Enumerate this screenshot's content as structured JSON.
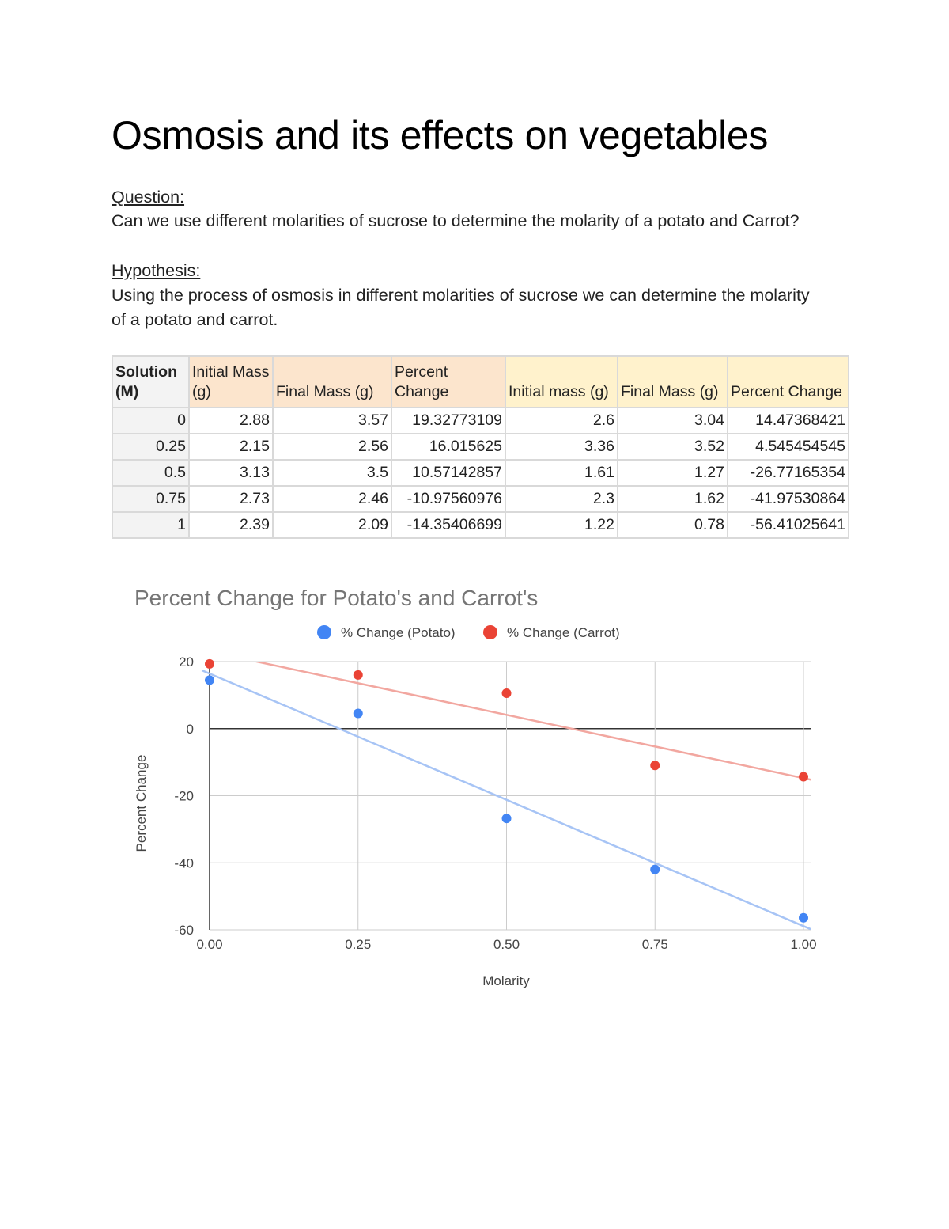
{
  "document": {
    "title": "Osmosis and its effects on vegetables",
    "question_label": "Question:",
    "question_text": "Can we use different molarities of sucrose to determine the molarity of a potato and Carrot?",
    "hypothesis_label": "Hypothesis:",
    "hypothesis_text": "Using the process of osmosis in different molarities of sucrose we can determine the molarity of a potato and carrot."
  },
  "table": {
    "headers": [
      "Solution (M)",
      "Initial Mass (g)",
      "Final Mass (g)",
      "Percent Change",
      "Initial mass (g)",
      "Final Mass (g)",
      "Percent Change"
    ],
    "header_colors": [
      "#f3f3f3",
      "#fce5cd",
      "#fce5cd",
      "#fce5cd",
      "#fff2cc",
      "#fff2cc",
      "#fff2cc"
    ],
    "rows": [
      [
        "0",
        "2.88",
        "3.57",
        "19.32773109",
        "2.6",
        "3.04",
        "14.47368421"
      ],
      [
        "0.25",
        "2.15",
        "2.56",
        "16.015625",
        "3.36",
        "3.52",
        "4.545454545"
      ],
      [
        "0.5",
        "3.13",
        "3.5",
        "10.57142857",
        "1.61",
        "1.27",
        "-26.77165354"
      ],
      [
        "0.75",
        "2.73",
        "2.46",
        "-10.97560976",
        "2.3",
        "1.62",
        "-41.97530864"
      ],
      [
        "1",
        "2.39",
        "2.09",
        "-14.35406699",
        "1.22",
        "0.78",
        "-56.41025641"
      ]
    ]
  },
  "chart_data": {
    "type": "scatter",
    "title": "Percent Change for Potato's and Carrot's",
    "xlabel": "Molarity",
    "ylabel": "Percent Change",
    "xlim": [
      0,
      1
    ],
    "ylim": [
      -60,
      20
    ],
    "x_ticks": [
      "0.00",
      "0.25",
      "0.50",
      "0.75",
      "1.00"
    ],
    "y_ticks": [
      "20",
      "0",
      "-20",
      "-40",
      "-60"
    ],
    "grid": true,
    "legend": "top",
    "trendlines": true,
    "x": [
      0,
      0.25,
      0.5,
      0.75,
      1
    ],
    "series": [
      {
        "name": "% Change (Potato)",
        "color": "#4285f4",
        "trend_color": "#a7c4f5",
        "values": [
          14.47,
          4.55,
          -26.77,
          -41.98,
          -56.41
        ]
      },
      {
        "name": "% Change (Carrot)",
        "color": "#ea4335",
        "trend_color": "#f2a7a0",
        "values": [
          19.33,
          16.02,
          10.57,
          -10.98,
          -14.35
        ]
      }
    ]
  }
}
